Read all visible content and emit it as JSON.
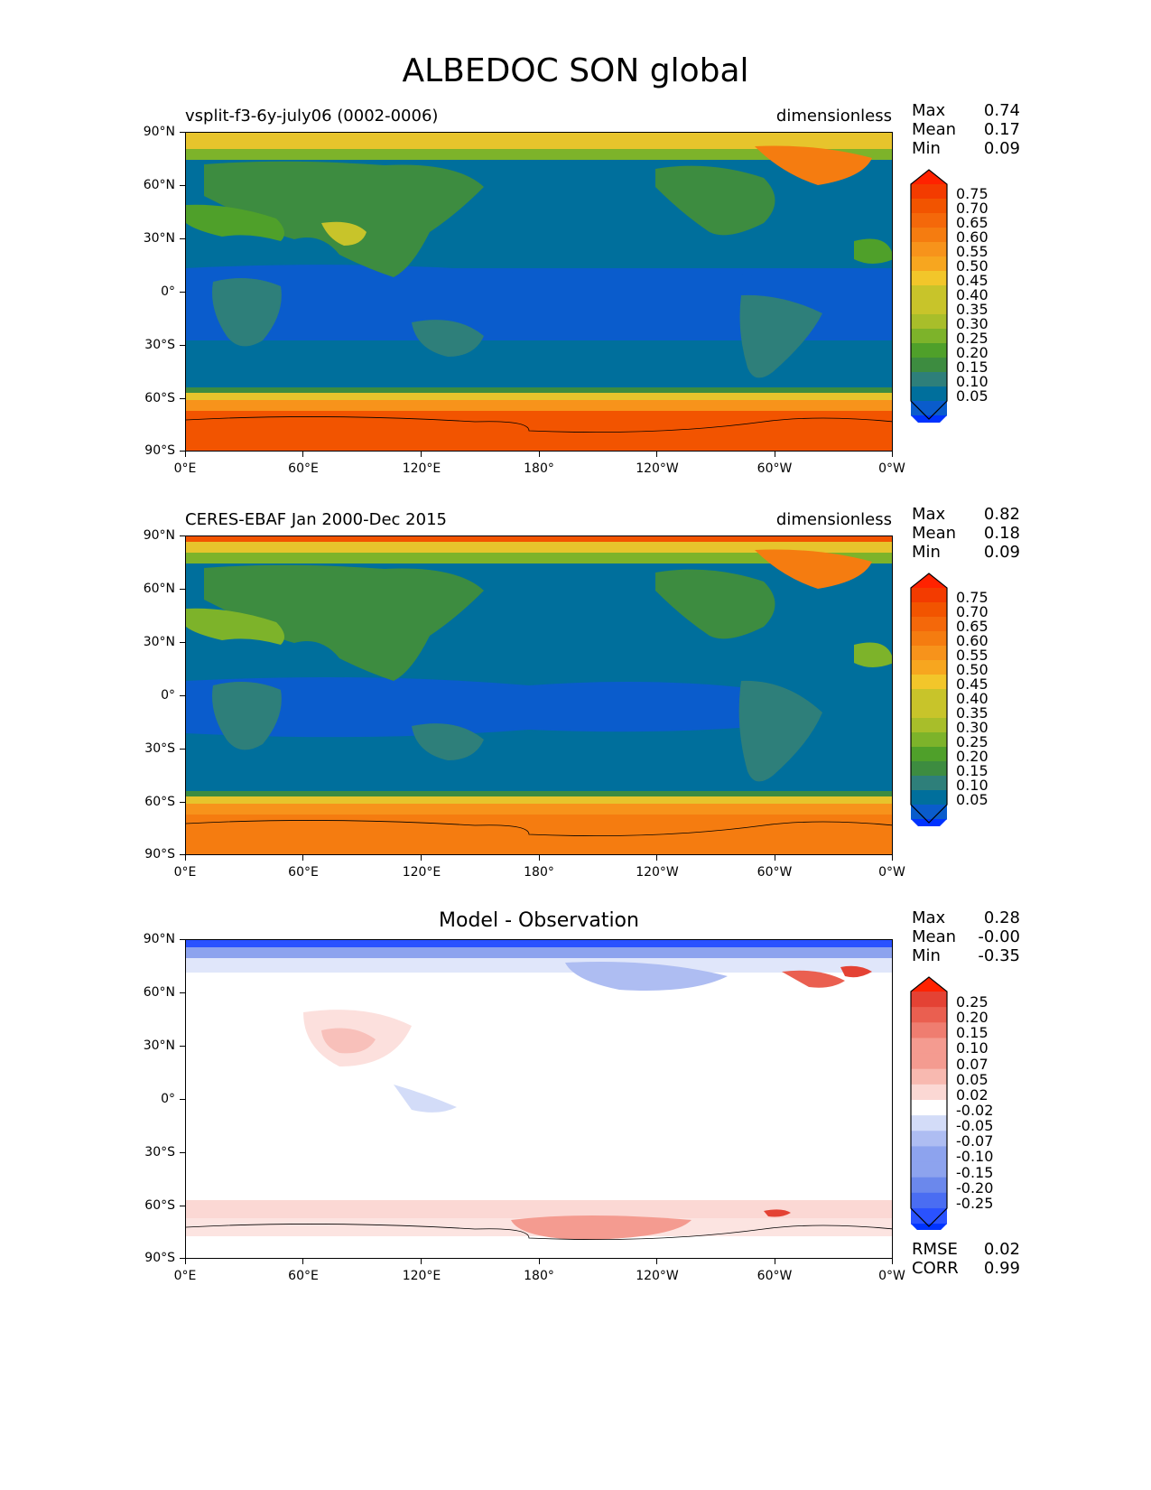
{
  "title": "ALBEDOC SON global",
  "axes": {
    "lat_labels": [
      "90°N",
      "60°N",
      "30°N",
      "0°",
      "30°S",
      "60°S",
      "90°S"
    ],
    "lon_labels": [
      "0°E",
      "60°E",
      "120°E",
      "180°",
      "120°W",
      "60°W",
      "0°W"
    ]
  },
  "panels": [
    {
      "title": "vsplit-f3-6y-july06 (0002-0006)",
      "units": "dimensionless",
      "stats": [
        {
          "label": "Max",
          "value": "0.74"
        },
        {
          "label": "Mean",
          "value": "0.17"
        },
        {
          "label": "Min",
          "value": "0.09"
        }
      ],
      "colorbar_labels": [
        "0.75",
        "0.70",
        "0.65",
        "0.60",
        "0.55",
        "0.50",
        "0.45",
        "0.40",
        "0.35",
        "0.30",
        "0.25",
        "0.20",
        "0.15",
        "0.10",
        "0.05"
      ]
    },
    {
      "title": "CERES-EBAF Jan 2000-Dec 2015",
      "units": "dimensionless",
      "stats": [
        {
          "label": "Max",
          "value": "0.82"
        },
        {
          "label": "Mean",
          "value": "0.18"
        },
        {
          "label": "Min",
          "value": "0.09"
        }
      ],
      "colorbar_labels": [
        "0.75",
        "0.70",
        "0.65",
        "0.60",
        "0.55",
        "0.50",
        "0.45",
        "0.40",
        "0.35",
        "0.30",
        "0.25",
        "0.20",
        "0.15",
        "0.10",
        "0.05"
      ]
    },
    {
      "title": "Model - Observation",
      "units": "",
      "stats": [
        {
          "label": "Max",
          "value": "0.28"
        },
        {
          "label": "Mean",
          "value": "-0.00"
        },
        {
          "label": "Min",
          "value": "-0.35"
        }
      ],
      "colorbar_labels": [
        "0.25",
        "0.20",
        "0.15",
        "0.10",
        "0.07",
        "0.05",
        "0.02",
        "-0.02",
        "-0.05",
        "-0.07",
        "-0.10",
        "-0.15",
        "-0.20",
        "-0.25"
      ],
      "extra_stats": [
        {
          "label": "RMSE",
          "value": "0.02"
        },
        {
          "label": "CORR",
          "value": "0.99"
        }
      ]
    }
  ],
  "colors": {
    "seq": [
      "#0033ff",
      "#0a5ccc",
      "#006f9c",
      "#2e7f7a",
      "#3d8c40",
      "#4fa02a",
      "#7db32a",
      "#a8be2a",
      "#c8c42a",
      "#f2c62a",
      "#f7a61f",
      "#f7931b",
      "#f57c10",
      "#f4680a",
      "#f25400",
      "#f33b00",
      "#ff2200"
    ],
    "div": [
      "#0033ff",
      "#2a52ff",
      "#4a6df2",
      "#6b88ec",
      "#8da3ee",
      "#aebdf2",
      "#d3dcf8",
      "#ffffff",
      "#fbd8d4",
      "#f8b9b0",
      "#f49b90",
      "#ef7d70",
      "#ea5f50",
      "#e44234",
      "#ff2200"
    ]
  }
}
